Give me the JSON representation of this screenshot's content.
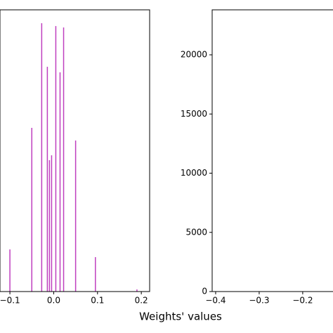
{
  "chart_data": [
    {
      "type": "bar",
      "x": [
        -0.1,
        -0.05,
        -0.0274,
        -0.0145,
        -0.0097,
        -0.0048,
        0.0048,
        0.0145,
        0.0226,
        0.05,
        0.0952,
        0.19
      ],
      "values": [
        3560,
        13830,
        22670,
        18990,
        11100,
        11510,
        22430,
        18520,
        22310,
        12760,
        2910,
        180
      ],
      "color": "#bf3fbf",
      "xlim": [
        -0.1226,
        0.219
      ],
      "xticks": [
        {
          "value": -0.1,
          "label": "−0.1"
        },
        {
          "value": 0.0,
          "label": "0.0"
        },
        0.1,
        0.2
      ],
      "ylim": [
        0,
        23800
      ],
      "xlabel": "Weights' values"
    },
    {
      "type": "bar",
      "x": [],
      "values": [],
      "xlim": [
        -0.408,
        -0.124
      ],
      "xticks": [
        {
          "value": -0.4,
          "label": "−0.4"
        },
        {
          "value": -0.3,
          "label": "−0.3"
        },
        {
          "value": -0.2,
          "label": "−0.2"
        }
      ],
      "ylim": [
        0,
        23800
      ],
      "yticks": [
        0,
        5000,
        10000,
        15000,
        20000
      ]
    }
  ]
}
